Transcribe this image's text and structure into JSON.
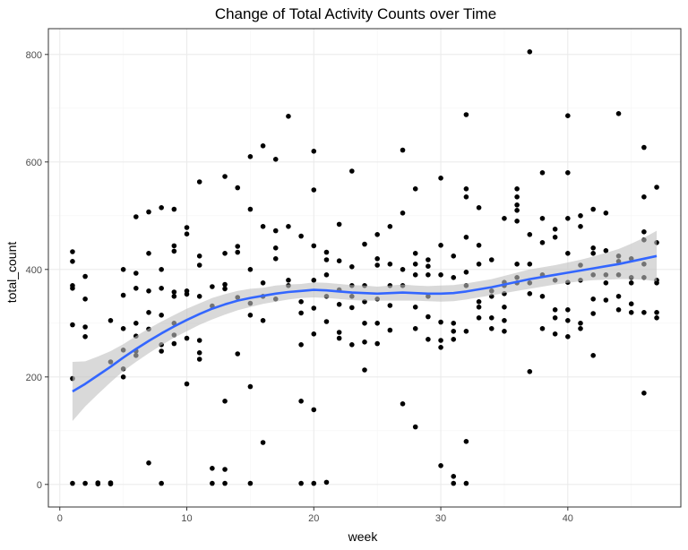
{
  "chart_data": {
    "type": "scatter",
    "title": "Change of Total Activity Counts over Time",
    "xlabel": "week",
    "ylabel": "total_count",
    "xlim": [
      -0.9,
      48.9
    ],
    "ylim": [
      -42,
      848
    ],
    "xticks": [
      0,
      10,
      20,
      30,
      40
    ],
    "yticks": [
      0,
      200,
      400,
      600,
      800
    ],
    "grid": true,
    "colors": {
      "panel_border": "#333333",
      "grid_major": "#ebebeb",
      "grid_minor": "#f5f5f5",
      "points": "#000000",
      "smooth_line": "#3366ff",
      "smooth_band": "#bfbfbf"
    },
    "points": [
      [
        1,
        433
      ],
      [
        1,
        415
      ],
      [
        1,
        370
      ],
      [
        1,
        365
      ],
      [
        1,
        297
      ],
      [
        1,
        197
      ],
      [
        1,
        2
      ],
      [
        2,
        387
      ],
      [
        2,
        345
      ],
      [
        2,
        293
      ],
      [
        2,
        275
      ],
      [
        2,
        2
      ],
      [
        3,
        3
      ],
      [
        3,
        1
      ],
      [
        4,
        305
      ],
      [
        4,
        228
      ],
      [
        4,
        3
      ],
      [
        4,
        1
      ],
      [
        5,
        400
      ],
      [
        5,
        352
      ],
      [
        5,
        290
      ],
      [
        5,
        250
      ],
      [
        5,
        215
      ],
      [
        5,
        200
      ],
      [
        6,
        498
      ],
      [
        6,
        393
      ],
      [
        6,
        365
      ],
      [
        6,
        300
      ],
      [
        6,
        276
      ],
      [
        6,
        248
      ],
      [
        6,
        240
      ],
      [
        7,
        507
      ],
      [
        7,
        430
      ],
      [
        7,
        360
      ],
      [
        7,
        320
      ],
      [
        7,
        289
      ],
      [
        7,
        40
      ],
      [
        8,
        515
      ],
      [
        8,
        400
      ],
      [
        8,
        365
      ],
      [
        8,
        315
      ],
      [
        8,
        260
      ],
      [
        8,
        248
      ],
      [
        8,
        2
      ],
      [
        9,
        512
      ],
      [
        9,
        444
      ],
      [
        9,
        434
      ],
      [
        9,
        358
      ],
      [
        9,
        350
      ],
      [
        9,
        300
      ],
      [
        9,
        278
      ],
      [
        9,
        262
      ],
      [
        10,
        478
      ],
      [
        10,
        466
      ],
      [
        10,
        360
      ],
      [
        10,
        354
      ],
      [
        10,
        272
      ],
      [
        10,
        187
      ],
      [
        11,
        563
      ],
      [
        11,
        425
      ],
      [
        11,
        408
      ],
      [
        11,
        350
      ],
      [
        11,
        268
      ],
      [
        11,
        245
      ],
      [
        11,
        233
      ],
      [
        12,
        368
      ],
      [
        12,
        332
      ],
      [
        12,
        30
      ],
      [
        12,
        2
      ],
      [
        13,
        573
      ],
      [
        13,
        430
      ],
      [
        13,
        372
      ],
      [
        13,
        364
      ],
      [
        13,
        155
      ],
      [
        13,
        28
      ],
      [
        13,
        2
      ],
      [
        14,
        552
      ],
      [
        14,
        443
      ],
      [
        14,
        432
      ],
      [
        14,
        348
      ],
      [
        14,
        243
      ],
      [
        15,
        610
      ],
      [
        15,
        512
      ],
      [
        15,
        400
      ],
      [
        15,
        337
      ],
      [
        15,
        315
      ],
      [
        15,
        182
      ],
      [
        15,
        2
      ],
      [
        16,
        630
      ],
      [
        16,
        480
      ],
      [
        16,
        375
      ],
      [
        16,
        350
      ],
      [
        16,
        305
      ],
      [
        16,
        78
      ],
      [
        17,
        605
      ],
      [
        17,
        472
      ],
      [
        17,
        440
      ],
      [
        17,
        420
      ],
      [
        17,
        345
      ],
      [
        18,
        685
      ],
      [
        18,
        480
      ],
      [
        18,
        380
      ],
      [
        18,
        370
      ],
      [
        19,
        462
      ],
      [
        19,
        340
      ],
      [
        19,
        319
      ],
      [
        19,
        260
      ],
      [
        19,
        155
      ],
      [
        19,
        2
      ],
      [
        20,
        620
      ],
      [
        20,
        548
      ],
      [
        20,
        444
      ],
      [
        20,
        380
      ],
      [
        20,
        328
      ],
      [
        20,
        280
      ],
      [
        20,
        139
      ],
      [
        20,
        2
      ],
      [
        21,
        432
      ],
      [
        21,
        418
      ],
      [
        21,
        390
      ],
      [
        21,
        350
      ],
      [
        21,
        303
      ],
      [
        21,
        4
      ],
      [
        22,
        484
      ],
      [
        22,
        416
      ],
      [
        22,
        362
      ],
      [
        22,
        335
      ],
      [
        22,
        283
      ],
      [
        22,
        272
      ],
      [
        23,
        583
      ],
      [
        23,
        405
      ],
      [
        23,
        370
      ],
      [
        23,
        350
      ],
      [
        23,
        329
      ],
      [
        23,
        260
      ],
      [
        24,
        447
      ],
      [
        24,
        370
      ],
      [
        24,
        340
      ],
      [
        24,
        300
      ],
      [
        24,
        265
      ],
      [
        24,
        213
      ],
      [
        25,
        465
      ],
      [
        25,
        420
      ],
      [
        25,
        408
      ],
      [
        25,
        345
      ],
      [
        25,
        300
      ],
      [
        25,
        262
      ],
      [
        26,
        480
      ],
      [
        26,
        410
      ],
      [
        26,
        370
      ],
      [
        26,
        333
      ],
      [
        26,
        287
      ],
      [
        27,
        622
      ],
      [
        27,
        505
      ],
      [
        27,
        400
      ],
      [
        27,
        370
      ],
      [
        27,
        150
      ],
      [
        28,
        550
      ],
      [
        28,
        430
      ],
      [
        28,
        410
      ],
      [
        28,
        390
      ],
      [
        28,
        330
      ],
      [
        28,
        290
      ],
      [
        28,
        107
      ],
      [
        29,
        418
      ],
      [
        29,
        406
      ],
      [
        29,
        390
      ],
      [
        29,
        350
      ],
      [
        29,
        312
      ],
      [
        29,
        270
      ],
      [
        30,
        570
      ],
      [
        30,
        445
      ],
      [
        30,
        390
      ],
      [
        30,
        302
      ],
      [
        30,
        268
      ],
      [
        30,
        255
      ],
      [
        30,
        35
      ],
      [
        31,
        425
      ],
      [
        31,
        385
      ],
      [
        31,
        300
      ],
      [
        31,
        285
      ],
      [
        31,
        270
      ],
      [
        31,
        15
      ],
      [
        31,
        2
      ],
      [
        32,
        688
      ],
      [
        32,
        550
      ],
      [
        32,
        535
      ],
      [
        32,
        460
      ],
      [
        32,
        395
      ],
      [
        32,
        370
      ],
      [
        32,
        285
      ],
      [
        32,
        80
      ],
      [
        32,
        2
      ],
      [
        33,
        515
      ],
      [
        33,
        445
      ],
      [
        33,
        410
      ],
      [
        33,
        340
      ],
      [
        33,
        330
      ],
      [
        33,
        310
      ],
      [
        34,
        418
      ],
      [
        34,
        360
      ],
      [
        34,
        350
      ],
      [
        34,
        310
      ],
      [
        34,
        290
      ],
      [
        35,
        495
      ],
      [
        35,
        376
      ],
      [
        35,
        370
      ],
      [
        35,
        355
      ],
      [
        35,
        330
      ],
      [
        35,
        305
      ],
      [
        35,
        285
      ],
      [
        36,
        550
      ],
      [
        36,
        535
      ],
      [
        36,
        520
      ],
      [
        36,
        510
      ],
      [
        36,
        490
      ],
      [
        36,
        410
      ],
      [
        36,
        385
      ],
      [
        36,
        375
      ],
      [
        37,
        805
      ],
      [
        37,
        465
      ],
      [
        37,
        410
      ],
      [
        37,
        375
      ],
      [
        37,
        355
      ],
      [
        37,
        210
      ],
      [
        38,
        580
      ],
      [
        38,
        495
      ],
      [
        38,
        450
      ],
      [
        38,
        390
      ],
      [
        38,
        350
      ],
      [
        38,
        290
      ],
      [
        39,
        475
      ],
      [
        39,
        460
      ],
      [
        39,
        380
      ],
      [
        39,
        325
      ],
      [
        39,
        310
      ],
      [
        39,
        280
      ],
      [
        40,
        686
      ],
      [
        40,
        580
      ],
      [
        40,
        495
      ],
      [
        40,
        430
      ],
      [
        40,
        376
      ],
      [
        40,
        325
      ],
      [
        40,
        305
      ],
      [
        40,
        275
      ],
      [
        41,
        500
      ],
      [
        41,
        480
      ],
      [
        41,
        408
      ],
      [
        41,
        380
      ],
      [
        41,
        300
      ],
      [
        41,
        290
      ],
      [
        42,
        512
      ],
      [
        42,
        440
      ],
      [
        42,
        430
      ],
      [
        42,
        390
      ],
      [
        42,
        345
      ],
      [
        42,
        318
      ],
      [
        42,
        240
      ],
      [
        43,
        505
      ],
      [
        43,
        435
      ],
      [
        43,
        390
      ],
      [
        43,
        375
      ],
      [
        43,
        343
      ],
      [
        44,
        690
      ],
      [
        44,
        425
      ],
      [
        44,
        415
      ],
      [
        44,
        390
      ],
      [
        44,
        350
      ],
      [
        44,
        325
      ],
      [
        45,
        420
      ],
      [
        45,
        385
      ],
      [
        45,
        375
      ],
      [
        45,
        336
      ],
      [
        45,
        320
      ],
      [
        46,
        627
      ],
      [
        46,
        535
      ],
      [
        46,
        470
      ],
      [
        46,
        455
      ],
      [
        46,
        410
      ],
      [
        46,
        385
      ],
      [
        46,
        320
      ],
      [
        46,
        170
      ],
      [
        47,
        553
      ],
      [
        47,
        450
      ],
      [
        47,
        380
      ],
      [
        47,
        375
      ],
      [
        47,
        320
      ],
      [
        47,
        310
      ]
    ],
    "smooth": {
      "x": [
        1,
        2,
        3,
        4,
        5,
        6,
        7,
        8,
        9,
        10,
        11,
        12,
        13,
        14,
        15,
        16,
        17,
        18,
        19,
        20,
        21,
        22,
        23,
        24,
        25,
        26,
        27,
        28,
        29,
        30,
        31,
        32,
        33,
        34,
        35,
        36,
        37,
        38,
        39,
        40,
        41,
        42,
        43,
        44,
        45,
        46,
        47
      ],
      "y": [
        173,
        187,
        203,
        219,
        236,
        252,
        267,
        281,
        294,
        306,
        317,
        327,
        335,
        342,
        347,
        351,
        355,
        358,
        360,
        362,
        361,
        359,
        357,
        356,
        355,
        356,
        357,
        356,
        355,
        355,
        356,
        359,
        363,
        367,
        372,
        377,
        382,
        386,
        390,
        394,
        398,
        402,
        406,
        410,
        415,
        420,
        425
      ],
      "lower": [
        118,
        145,
        168,
        190,
        211,
        228,
        244,
        259,
        273,
        285,
        297,
        307,
        316,
        324,
        330,
        336,
        340,
        344,
        347,
        348,
        347,
        345,
        343,
        342,
        342,
        342,
        342,
        342,
        341,
        340,
        341,
        344,
        348,
        352,
        356,
        360,
        364,
        368,
        372,
        375,
        378,
        380,
        381,
        382,
        382,
        381,
        378
      ],
      "upper": [
        228,
        229,
        238,
        248,
        261,
        276,
        290,
        303,
        315,
        327,
        337,
        347,
        354,
        360,
        364,
        366,
        370,
        372,
        373,
        376,
        375,
        373,
        371,
        370,
        368,
        370,
        372,
        370,
        369,
        370,
        371,
        374,
        378,
        382,
        388,
        394,
        400,
        404,
        408,
        413,
        418,
        424,
        431,
        438,
        448,
        459,
        472
      ]
    }
  }
}
